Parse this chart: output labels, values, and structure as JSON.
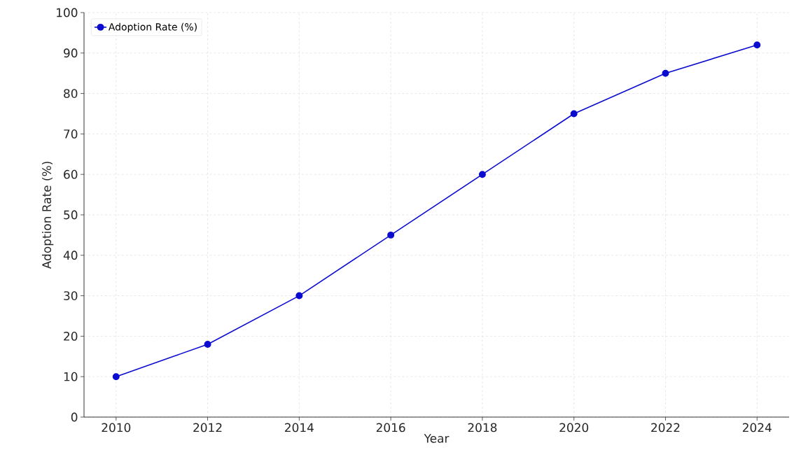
{
  "chart_data": {
    "type": "line",
    "xlabel": "Year",
    "ylabel": "Adoption Rate (%)",
    "x": [
      2010,
      2012,
      2014,
      2016,
      2018,
      2020,
      2022,
      2024
    ],
    "series": [
      {
        "name": "Adoption Rate (%)",
        "color": "#0b0bd0",
        "values": [
          10,
          18,
          30,
          45,
          60,
          75,
          85,
          92
        ]
      }
    ],
    "xlim": [
      2009.3,
      2024.7
    ],
    "ylim": [
      0,
      100
    ],
    "xticks": [
      2010,
      2012,
      2014,
      2016,
      2018,
      2020,
      2022,
      2024
    ],
    "yticks": [
      0,
      10,
      20,
      30,
      40,
      50,
      60,
      70,
      80,
      90,
      100
    ],
    "grid": true,
    "legend": "top left",
    "marker": "circle",
    "line_style": "solid"
  }
}
